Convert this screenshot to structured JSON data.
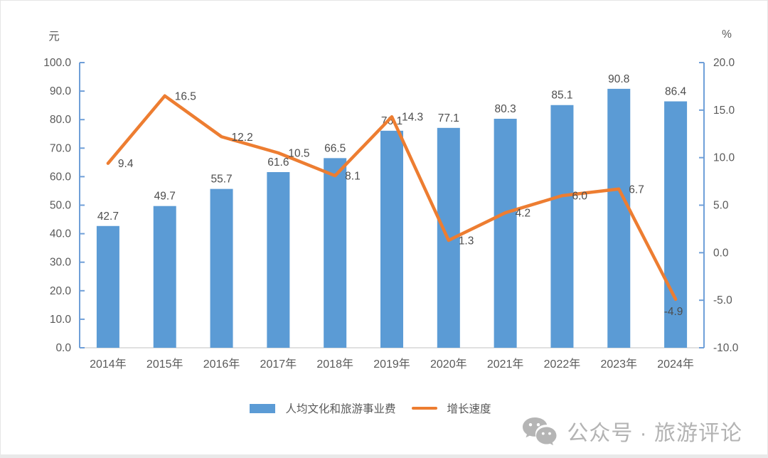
{
  "chart_data": {
    "type": "bar",
    "subtype": "bar+line combo",
    "categories": [
      "2014年",
      "2015年",
      "2016年",
      "2017年",
      "2018年",
      "2019年",
      "2020年",
      "2021年",
      "2022年",
      "2023年",
      "2024年"
    ],
    "series": [
      {
        "name": "人均文化和旅游事业费",
        "type": "bar",
        "axis": "left",
        "color": "#5B9BD5",
        "values": [
          42.7,
          49.7,
          55.7,
          61.6,
          66.5,
          76.1,
          77.1,
          80.3,
          85.1,
          90.8,
          86.4
        ]
      },
      {
        "name": "增长速度",
        "type": "line",
        "axis": "right",
        "color": "#ED7D31",
        "values": [
          9.4,
          16.5,
          12.2,
          10.5,
          8.1,
          14.3,
          1.3,
          4.2,
          6.0,
          6.7,
          -4.9
        ]
      }
    ],
    "left_axis": {
      "unit": "元",
      "min": 0,
      "max": 100,
      "tick_step": 10,
      "ticks": [
        "100.0",
        "90.0",
        "80.0",
        "70.0",
        "60.0",
        "50.0",
        "40.0",
        "30.0",
        "20.0",
        "10.0",
        "0.0"
      ]
    },
    "right_axis": {
      "unit": "%",
      "min": -10,
      "max": 20,
      "tick_step": 5,
      "ticks": [
        "20.0",
        "15.0",
        "10.0",
        "5.0",
        "0.0",
        "-5.0",
        "-10.0"
      ]
    },
    "grid": false,
    "data_labels": true,
    "legend_position": "bottom",
    "title": ""
  },
  "legend": {
    "bar_label": "人均文化和旅游事业费",
    "line_label": "增长速度"
  },
  "footer": {
    "brand_text": "公众号 · 旅游评论"
  },
  "colors": {
    "bar": "#5B9BD5",
    "line": "#ED7D31",
    "value_axis": "#6F9FD8",
    "category_axis": "#D6D6D6",
    "tick_text": "#595959",
    "data_label_text": "#4D4D4D",
    "brand_text": "#B3B3B3"
  }
}
